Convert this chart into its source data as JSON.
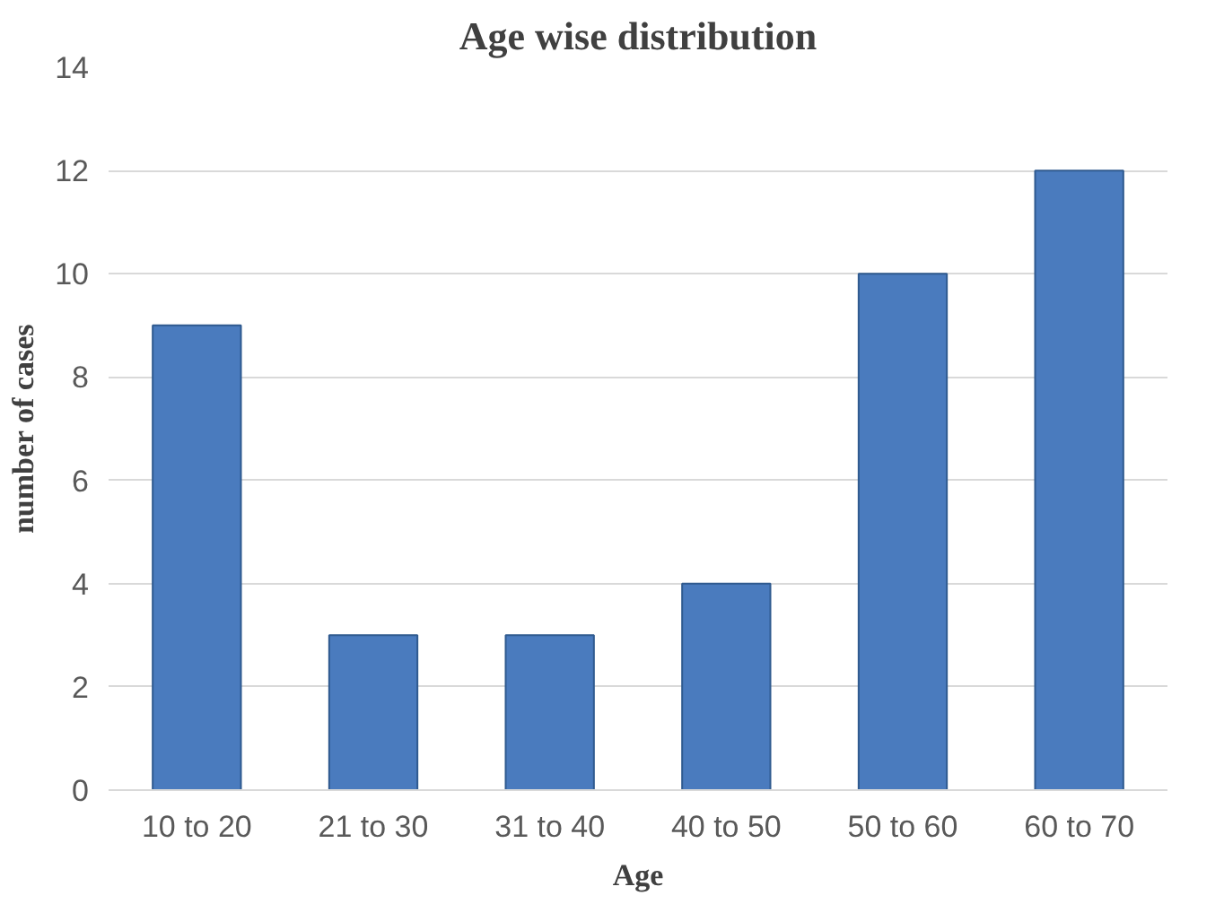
{
  "chart_data": {
    "type": "bar",
    "title": "Age wise distribution",
    "xlabel": "Age",
    "ylabel": "number of cases",
    "categories": [
      "10 to 20",
      "21 to 30",
      "31 to 40",
      "40 to 50",
      "50 to 60",
      "60 to 70"
    ],
    "values": [
      9,
      3,
      3,
      4,
      10,
      12
    ],
    "color": "#4a7bbe",
    "ylim": [
      0,
      14
    ],
    "yticks": [
      0,
      2,
      4,
      6,
      8,
      10,
      12,
      14
    ],
    "grid": "y"
  }
}
